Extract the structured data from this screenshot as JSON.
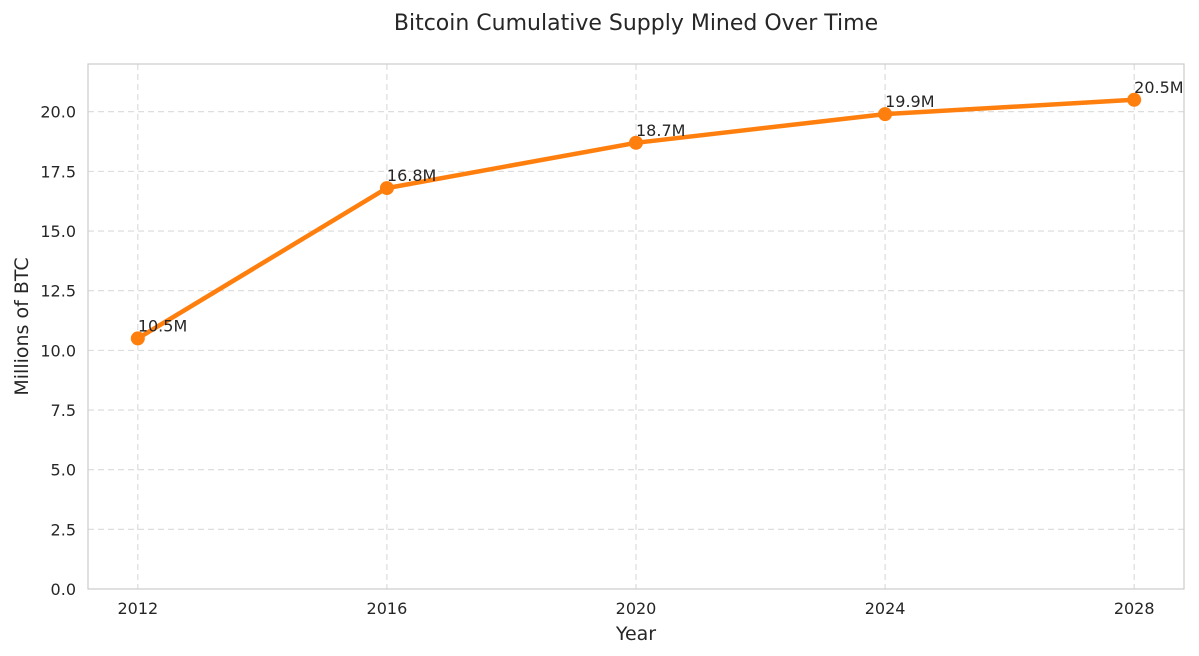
{
  "chart_data": {
    "type": "line",
    "title": "Bitcoin Cumulative Supply Mined Over Time",
    "xlabel": "Year",
    "ylabel": "Millions of BTC",
    "x": [
      2012,
      2016,
      2020,
      2024,
      2028
    ],
    "series": [
      {
        "values": [
          10.5,
          16.8,
          18.7,
          19.9,
          20.5
        ],
        "labels": [
          "10.5M",
          "16.8M",
          "18.7M",
          "19.9M",
          "20.5M"
        ],
        "color": "#ff7f0e"
      }
    ],
    "xticks": [
      "2012",
      "2016",
      "2020",
      "2024",
      "2028"
    ],
    "yticks": [
      "0.0",
      "2.5",
      "5.0",
      "7.5",
      "10.0",
      "12.5",
      "15.0",
      "17.5",
      "20.0"
    ],
    "ylim": [
      0,
      22
    ],
    "xlim": [
      2011.2,
      2028.8
    ],
    "grid": true,
    "grid_style": "dashed"
  }
}
